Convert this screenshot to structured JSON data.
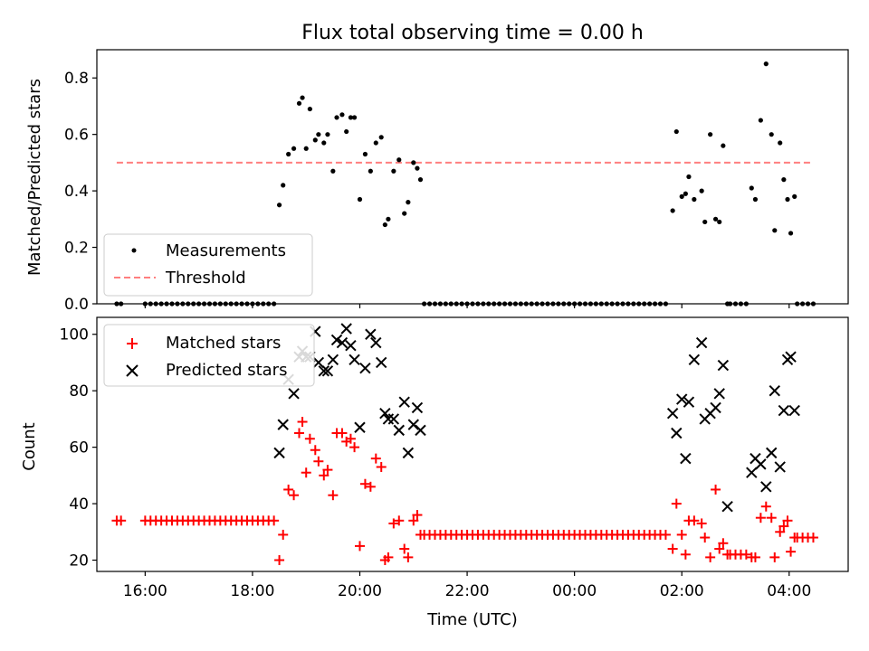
{
  "figure": {
    "title": "Flux total observing time = 0.00 h"
  },
  "chart_data": [
    {
      "type": "scatter",
      "ylabel": "Matched/Predicted stars",
      "xlim": [
        15.1,
        29.1
      ],
      "ylim": [
        0.0,
        0.9
      ],
      "yticks": [
        0.0,
        0.2,
        0.4,
        0.6,
        0.8
      ],
      "grid": false,
      "legend_position": "lower-left",
      "legend": [
        "Measurements",
        "Threshold"
      ],
      "series": [
        {
          "name": "Measurements",
          "marker": "dot",
          "color": "#000000",
          "x": [
            15.47,
            15.55,
            16.0,
            16.1,
            16.2,
            16.3,
            16.4,
            16.5,
            16.6,
            16.7,
            16.8,
            16.9,
            17.0,
            17.1,
            17.2,
            17.3,
            17.4,
            17.5,
            17.6,
            17.7,
            17.8,
            17.9,
            18.0,
            18.1,
            18.2,
            18.3,
            18.4,
            18.5,
            18.57,
            18.67,
            18.77,
            18.87,
            18.93,
            19.0,
            19.07,
            19.17,
            19.23,
            19.33,
            19.4,
            19.5,
            19.57,
            19.67,
            19.75,
            19.83,
            19.9,
            20.0,
            20.1,
            20.2,
            20.3,
            20.4,
            20.47,
            20.53,
            20.63,
            20.73,
            20.83,
            20.9,
            21.0,
            21.07,
            21.13,
            21.2,
            21.3,
            21.4,
            21.5,
            21.6,
            21.7,
            21.8,
            21.9,
            22.0,
            22.1,
            22.2,
            22.3,
            22.4,
            22.5,
            22.6,
            22.7,
            22.8,
            22.9,
            23.0,
            23.1,
            23.2,
            23.3,
            23.4,
            23.5,
            23.6,
            23.7,
            23.8,
            23.9,
            24.0,
            24.1,
            24.2,
            24.3,
            24.4,
            24.5,
            24.6,
            24.7,
            24.8,
            24.9,
            25.0,
            25.1,
            25.2,
            25.3,
            25.4,
            25.5,
            25.6,
            25.7,
            25.83,
            25.9,
            26.0,
            26.07,
            26.13,
            26.23,
            26.37,
            26.43,
            26.53,
            26.63,
            26.7,
            26.77,
            26.85,
            26.9,
            27.0,
            27.1,
            27.2,
            27.3,
            27.37,
            27.47,
            27.57,
            27.67,
            27.73,
            27.83,
            27.9,
            27.97,
            28.03,
            28.1,
            28.15,
            28.25,
            28.35,
            28.45
          ],
          "y": [
            0.0,
            0.0,
            0.0,
            0.0,
            0.0,
            0.0,
            0.0,
            0.0,
            0.0,
            0.0,
            0.0,
            0.0,
            0.0,
            0.0,
            0.0,
            0.0,
            0.0,
            0.0,
            0.0,
            0.0,
            0.0,
            0.0,
            0.0,
            0.0,
            0.0,
            0.0,
            0.0,
            0.35,
            0.42,
            0.53,
            0.55,
            0.71,
            0.73,
            0.55,
            0.69,
            0.58,
            0.6,
            0.57,
            0.6,
            0.47,
            0.66,
            0.67,
            0.61,
            0.66,
            0.66,
            0.37,
            0.53,
            0.47,
            0.57,
            0.59,
            0.28,
            0.3,
            0.47,
            0.51,
            0.32,
            0.36,
            0.5,
            0.48,
            0.44,
            0.0,
            0.0,
            0.0,
            0.0,
            0.0,
            0.0,
            0.0,
            0.0,
            0.0,
            0.0,
            0.0,
            0.0,
            0.0,
            0.0,
            0.0,
            0.0,
            0.0,
            0.0,
            0.0,
            0.0,
            0.0,
            0.0,
            0.0,
            0.0,
            0.0,
            0.0,
            0.0,
            0.0,
            0.0,
            0.0,
            0.0,
            0.0,
            0.0,
            0.0,
            0.0,
            0.0,
            0.0,
            0.0,
            0.0,
            0.0,
            0.0,
            0.0,
            0.0,
            0.0,
            0.0,
            0.0,
            0.33,
            0.61,
            0.38,
            0.39,
            0.45,
            0.37,
            0.4,
            0.29,
            0.6,
            0.3,
            0.29,
            0.56,
            0.0,
            0.0,
            0.0,
            0.0,
            0.0,
            0.41,
            0.37,
            0.65,
            0.85,
            0.6,
            0.26,
            0.57,
            0.44,
            0.37,
            0.25,
            0.38,
            0.0,
            0.0,
            0.0,
            0.0
          ]
        },
        {
          "name": "Threshold",
          "style": "dashed",
          "color": "#ff7f7f",
          "x": [
            15.47,
            28.45
          ],
          "y": [
            0.5,
            0.5
          ]
        }
      ]
    },
    {
      "type": "scatter",
      "xlabel": "Time (UTC)",
      "ylabel": "Count",
      "xlim": [
        15.1,
        29.1
      ],
      "ylim": [
        16,
        106
      ],
      "yticks": [
        20,
        40,
        60,
        80,
        100
      ],
      "xticks": [
        16,
        18,
        20,
        22,
        24,
        26,
        28
      ],
      "xtick_labels": [
        "16:00",
        "18:00",
        "20:00",
        "22:00",
        "00:00",
        "02:00",
        "04:00"
      ],
      "grid": false,
      "legend_position": "upper-left",
      "legend": [
        "Matched stars",
        "Predicted stars"
      ],
      "series": [
        {
          "name": "Matched stars",
          "marker": "plus",
          "color": "#ff0000",
          "x": [
            15.47,
            15.55,
            16.0,
            16.1,
            16.2,
            16.3,
            16.4,
            16.5,
            16.6,
            16.7,
            16.8,
            16.9,
            17.0,
            17.1,
            17.2,
            17.3,
            17.4,
            17.5,
            17.6,
            17.7,
            17.8,
            17.9,
            18.0,
            18.1,
            18.2,
            18.3,
            18.4,
            18.5,
            18.57,
            18.67,
            18.77,
            18.87,
            18.93,
            19.0,
            19.07,
            19.17,
            19.23,
            19.33,
            19.4,
            19.5,
            19.57,
            19.67,
            19.75,
            19.83,
            19.9,
            20.0,
            20.1,
            20.2,
            20.3,
            20.4,
            20.47,
            20.53,
            20.63,
            20.73,
            20.83,
            20.9,
            21.0,
            21.07,
            21.13,
            21.2,
            21.3,
            21.4,
            21.5,
            21.6,
            21.7,
            21.8,
            21.9,
            22.0,
            22.1,
            22.2,
            22.3,
            22.4,
            22.5,
            22.6,
            22.7,
            22.8,
            22.9,
            23.0,
            23.1,
            23.2,
            23.3,
            23.4,
            23.5,
            23.6,
            23.7,
            23.8,
            23.9,
            24.0,
            24.1,
            24.2,
            24.3,
            24.4,
            24.5,
            24.6,
            24.7,
            24.8,
            24.9,
            25.0,
            25.1,
            25.2,
            25.3,
            25.4,
            25.5,
            25.6,
            25.7,
            25.83,
            25.9,
            26.0,
            26.07,
            26.13,
            26.23,
            26.37,
            26.43,
            26.53,
            26.63,
            26.7,
            26.77,
            26.85,
            26.9,
            27.0,
            27.1,
            27.2,
            27.3,
            27.37,
            27.47,
            27.57,
            27.67,
            27.73,
            27.83,
            27.9,
            27.97,
            28.03,
            28.1,
            28.15,
            28.25,
            28.35,
            28.45
          ],
          "y": [
            34,
            34,
            34,
            34,
            34,
            34,
            34,
            34,
            34,
            34,
            34,
            34,
            34,
            34,
            34,
            34,
            34,
            34,
            34,
            34,
            34,
            34,
            34,
            34,
            34,
            34,
            34,
            20,
            29,
            45,
            43,
            65,
            69,
            51,
            63,
            59,
            55,
            50,
            52,
            43,
            65,
            65,
            62,
            63,
            60,
            25,
            47,
            46,
            56,
            53,
            20,
            21,
            33,
            34,
            24,
            21,
            34,
            36,
            29,
            29,
            29,
            29,
            29,
            29,
            29,
            29,
            29,
            29,
            29,
            29,
            29,
            29,
            29,
            29,
            29,
            29,
            29,
            29,
            29,
            29,
            29,
            29,
            29,
            29,
            29,
            29,
            29,
            29,
            29,
            29,
            29,
            29,
            29,
            29,
            29,
            29,
            29,
            29,
            29,
            29,
            29,
            29,
            29,
            29,
            29,
            24,
            40,
            29,
            22,
            34,
            34,
            33,
            28,
            21,
            45,
            24,
            26,
            22,
            22,
            22,
            22,
            22,
            21,
            21,
            35,
            39,
            35,
            21,
            30,
            32,
            34,
            23,
            28,
            28,
            28,
            28,
            28
          ]
        },
        {
          "name": "Predicted stars",
          "marker": "x",
          "color": "#000000",
          "x": [
            18.5,
            18.57,
            18.67,
            18.77,
            18.87,
            18.93,
            19.0,
            19.07,
            19.17,
            19.23,
            19.33,
            19.4,
            19.5,
            19.57,
            19.67,
            19.75,
            19.83,
            19.9,
            20.0,
            20.1,
            20.2,
            20.3,
            20.4,
            20.47,
            20.53,
            20.63,
            20.73,
            20.83,
            20.9,
            21.0,
            21.07,
            21.13,
            25.83,
            25.9,
            26.0,
            26.07,
            26.13,
            26.23,
            26.37,
            26.43,
            26.53,
            26.63,
            26.7,
            26.77,
            26.85,
            27.3,
            27.37,
            27.47,
            27.57,
            27.67,
            27.73,
            27.83,
            27.9,
            27.97,
            28.03,
            28.1
          ],
          "y": [
            58,
            68,
            84,
            79,
            92,
            94,
            92,
            92,
            101,
            90,
            87,
            87,
            91,
            98,
            97,
            102,
            96,
            91,
            67,
            88,
            100,
            97,
            90,
            72,
            70,
            70,
            66,
            76,
            58,
            68,
            74,
            66,
            72,
            65,
            77,
            56,
            76,
            91,
            97,
            70,
            72,
            74,
            79,
            89,
            39,
            51,
            56,
            54,
            46,
            58,
            80,
            53,
            73,
            91,
            92,
            73
          ]
        }
      ]
    }
  ]
}
